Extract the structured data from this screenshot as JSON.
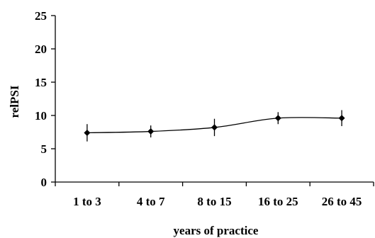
{
  "chart_data": {
    "type": "line",
    "title": "",
    "xlabel": "years of practice",
    "ylabel": "relPSI",
    "categories": [
      "1 to 3",
      "4 to 7",
      "8 to 15",
      "16 to 25",
      "26 to 45"
    ],
    "series": [
      {
        "values": [
          7.4,
          7.6,
          8.2,
          9.6,
          9.6
        ],
        "error": [
          1.3,
          0.9,
          1.3,
          0.9,
          1.2
        ]
      }
    ],
    "ylim": [
      0,
      25
    ],
    "yticks": [
      "0",
      "5",
      "10",
      "15",
      "20",
      "25"
    ],
    "grid": false,
    "legend": "none",
    "colors": {
      "line": "#000000",
      "marker": "#000000",
      "axis": "#000000"
    }
  }
}
